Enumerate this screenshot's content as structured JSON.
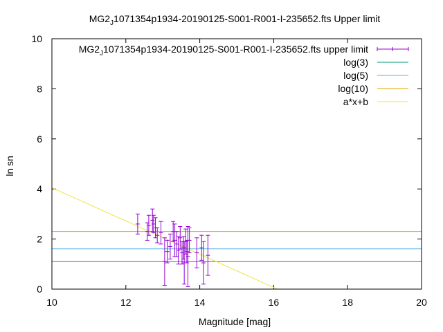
{
  "chart_data": {
    "type": "scatter",
    "title": {
      "prefix": "MG2",
      "subscript": "J",
      "rest": "1071354p1934-20190125-S001-R001-I-235652.fts Upper limit"
    },
    "xlabel": "Magnitude [mag]",
    "ylabel": "ln sn",
    "xlim": [
      10,
      20
    ],
    "ylim": [
      0,
      10
    ],
    "xticks": [
      "10",
      "12",
      "14",
      "16",
      "18",
      "20"
    ],
    "yticks": [
      "0",
      "2",
      "4",
      "6",
      "8",
      "10"
    ],
    "grid": false,
    "legend_position": "top-right",
    "legend": [
      {
        "prefix": "MG2",
        "subscript": "J",
        "rest": "1071354p1934-20190125-S001-R001-I-235652.fts upper limit",
        "color": "#9400d3",
        "style": "errorbar"
      },
      {
        "label": "log(3)",
        "color": "#009e73",
        "style": "line"
      },
      {
        "label": "log(5)",
        "color": "#56b4e9",
        "style": "line"
      },
      {
        "label": "log(10)",
        "color": "#e69f00",
        "style": "line"
      },
      {
        "label": "a*x+b",
        "color": "#f0e442",
        "style": "line"
      }
    ],
    "hlines": [
      {
        "name": "log(3)",
        "y": 1.0986,
        "color": "#009e73"
      },
      {
        "name": "log(5)",
        "y": 1.6094,
        "color": "#56b4e9"
      },
      {
        "name": "log(10)",
        "y": 2.3026,
        "color": "#e69f00"
      }
    ],
    "fit_line": {
      "name": "a*x+b",
      "x": [
        10,
        16.1
      ],
      "y": [
        4.05,
        0.0
      ],
      "color": "#f0e442"
    },
    "series": [
      {
        "name": "upper limit",
        "color": "#9400d3",
        "points": [
          {
            "x": 12.32,
            "y": 2.6,
            "yerr": 0.4
          },
          {
            "x": 12.58,
            "y": 2.3,
            "yerr": 0.35
          },
          {
            "x": 12.62,
            "y": 2.55,
            "yerr": 0.4
          },
          {
            "x": 12.72,
            "y": 2.75,
            "yerr": 0.45
          },
          {
            "x": 12.75,
            "y": 2.6,
            "yerr": 0.35
          },
          {
            "x": 12.8,
            "y": 2.45,
            "yerr": 0.4
          },
          {
            "x": 12.85,
            "y": 2.15,
            "yerr": 0.3
          },
          {
            "x": 12.95,
            "y": 2.25,
            "yerr": 0.45
          },
          {
            "x": 13.05,
            "y": 1.1,
            "yerr": 0.95
          },
          {
            "x": 13.12,
            "y": 1.5,
            "yerr": 0.45
          },
          {
            "x": 13.2,
            "y": 1.7,
            "yerr": 0.5
          },
          {
            "x": 13.28,
            "y": 2.3,
            "yerr": 0.4
          },
          {
            "x": 13.32,
            "y": 1.95,
            "yerr": 0.65
          },
          {
            "x": 13.38,
            "y": 1.8,
            "yerr": 0.5
          },
          {
            "x": 13.42,
            "y": 1.55,
            "yerr": 0.55
          },
          {
            "x": 13.47,
            "y": 2.05,
            "yerr": 0.45
          },
          {
            "x": 13.52,
            "y": 1.45,
            "yerr": 0.45
          },
          {
            "x": 13.56,
            "y": 1.65,
            "yerr": 0.45
          },
          {
            "x": 13.58,
            "y": 1.05,
            "yerr": 0.85
          },
          {
            "x": 13.62,
            "y": 1.9,
            "yerr": 0.5
          },
          {
            "x": 13.65,
            "y": 1.5,
            "yerr": 0.45
          },
          {
            "x": 13.68,
            "y": 1.3,
            "yerr": 1.2
          },
          {
            "x": 13.72,
            "y": 1.95,
            "yerr": 0.5
          },
          {
            "x": 13.92,
            "y": 1.45,
            "yerr": 0.6
          },
          {
            "x": 14.05,
            "y": 1.65,
            "yerr": 0.5
          },
          {
            "x": 14.1,
            "y": 1.05,
            "yerr": 0.85
          },
          {
            "x": 14.22,
            "y": 1.35,
            "yerr": 0.8
          }
        ]
      }
    ]
  }
}
